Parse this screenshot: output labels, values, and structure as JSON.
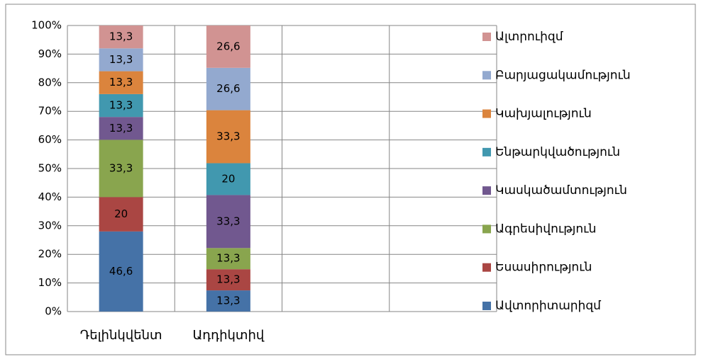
{
  "chart_data": {
    "type": "bar",
    "stacking": "percent",
    "categories": [
      "Դելինկվենտ",
      "Ադդիկտիվ",
      null,
      null
    ],
    "series": [
      {
        "name": "Ավտորիտարիզմ",
        "color": "#4572a7",
        "values": [
          46.6,
          13.3,
          null,
          null
        ],
        "value_labels": [
          "46,6",
          "13,3",
          null,
          null
        ]
      },
      {
        "name": "Եսասիրություն",
        "color": "#aa4643",
        "values": [
          20,
          13.3,
          null,
          null
        ],
        "value_labels": [
          "20",
          "13,3",
          null,
          null
        ]
      },
      {
        "name": "Ագրեսիվություն",
        "color": "#89a54e",
        "values": [
          33.3,
          13.3,
          null,
          null
        ],
        "value_labels": [
          "33,3",
          "13,3",
          null,
          null
        ]
      },
      {
        "name": "Կասկածամտություն",
        "color": "#71588f",
        "values": [
          13.3,
          33.3,
          null,
          null
        ],
        "value_labels": [
          "13,3",
          "33,3",
          null,
          null
        ]
      },
      {
        "name": "Ենթարկվածություն",
        "color": "#4198af",
        "values": [
          13.3,
          20,
          null,
          null
        ],
        "value_labels": [
          "13,3",
          "20",
          null,
          null
        ]
      },
      {
        "name": "Կախյալություն",
        "color": "#db843d",
        "values": [
          13.3,
          33.3,
          null,
          null
        ],
        "value_labels": [
          "13,3",
          "33,3",
          null,
          null
        ]
      },
      {
        "name": "Բարյացակամություն",
        "color": "#93a9cf",
        "values": [
          13.3,
          26.6,
          null,
          null
        ],
        "value_labels": [
          "13,3",
          "26,6",
          null,
          null
        ]
      },
      {
        "name": "Ալտրուիզմ",
        "color": "#d19392",
        "values": [
          13.3,
          26.6,
          null,
          null
        ],
        "value_labels": [
          "13,3",
          "26,6",
          null,
          null
        ]
      }
    ],
    "ylim": [
      0,
      100
    ],
    "yticks": [
      {
        "value": 0,
        "label": "0%"
      },
      {
        "value": 10,
        "label": "10%"
      },
      {
        "value": 20,
        "label": "20%"
      },
      {
        "value": 30,
        "label": "30%"
      },
      {
        "value": 40,
        "label": "40%"
      },
      {
        "value": 50,
        "label": "50%"
      },
      {
        "value": 60,
        "label": "60%"
      },
      {
        "value": 70,
        "label": "70%"
      },
      {
        "value": 80,
        "label": "80%"
      },
      {
        "value": 90,
        "label": "90%"
      },
      {
        "value": 100,
        "label": "100%"
      }
    ],
    "grid": true,
    "legend": "right"
  }
}
